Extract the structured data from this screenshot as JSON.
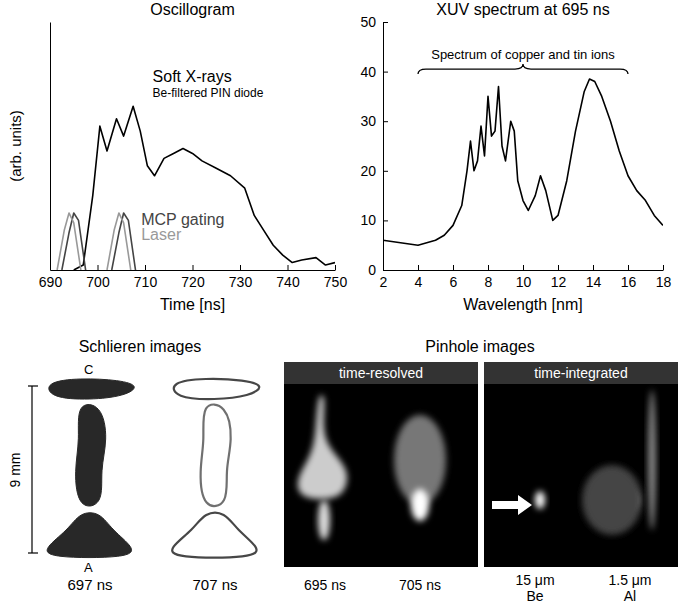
{
  "chart_data": [
    {
      "type": "line",
      "title": "Oscillogram",
      "xlabel": "Time [ns]",
      "ylabel": "(arb. units)",
      "xlim": [
        690,
        750
      ],
      "xticks": [
        690,
        700,
        710,
        720,
        730,
        740,
        750
      ],
      "ylim": [
        0,
        1
      ],
      "tick_labels": "x",
      "annotations": [
        "Be-filtered PIN diode"
      ],
      "series": [
        {
          "name": "Soft X-rays",
          "color": "#000000",
          "x": [
            695,
            697,
            699,
            700.5,
            702,
            704,
            705.5,
            707.5,
            709,
            710.5,
            712,
            714,
            716,
            718,
            720,
            722,
            725,
            728,
            731,
            733,
            735,
            737,
            739,
            741,
            743,
            746,
            748,
            750
          ],
          "values": [
            0,
            0.02,
            0.3,
            0.58,
            0.48,
            0.61,
            0.54,
            0.66,
            0.56,
            0.42,
            0.38,
            0.45,
            0.47,
            0.49,
            0.47,
            0.44,
            0.41,
            0.38,
            0.33,
            0.22,
            0.16,
            0.1,
            0.06,
            0.03,
            0.04,
            0.05,
            0.02,
            0.03
          ]
        },
        {
          "name": "MCP gating",
          "color": "#444444",
          "x": [
            692.5,
            694,
            695,
            696,
            697.5,
            700,
            703,
            704.5,
            705.5,
            706.5,
            708
          ],
          "values": [
            0,
            0.15,
            0.23,
            0.2,
            0,
            null,
            0,
            0.15,
            0.23,
            0.2,
            0
          ]
        },
        {
          "name": "Laser",
          "color": "#999999",
          "x": [
            691.5,
            693,
            694,
            695,
            696.5,
            699,
            702,
            703.5,
            704.5,
            705.5,
            707
          ],
          "values": [
            0,
            0.16,
            0.23,
            0.19,
            0,
            null,
            0,
            0.16,
            0.23,
            0.19,
            0
          ]
        }
      ]
    },
    {
      "type": "line",
      "title": "XUV spectrum at 695 ns",
      "xlabel": "Wavelength [nm]",
      "xlim": [
        2,
        18
      ],
      "xticks": [
        2,
        4,
        6,
        8,
        10,
        12,
        14,
        16,
        18
      ],
      "ylim": [
        0,
        50
      ],
      "yticks": [
        0,
        10,
        20,
        30,
        40,
        50
      ],
      "color": "#000000",
      "annotations": [
        {
          "text": "Spectrum of copper and tin ions",
          "x_range": [
            4,
            16
          ],
          "y": 40.5
        }
      ],
      "x": [
        2,
        3,
        4,
        5,
        5.5,
        6,
        6.5,
        6.8,
        7,
        7.2,
        7.4,
        7.6,
        7.8,
        8,
        8.2,
        8.4,
        8.6,
        8.8,
        9,
        9.3,
        9.5,
        9.7,
        10,
        10.3,
        10.7,
        11,
        11.3,
        11.7,
        12,
        12.5,
        13,
        13.5,
        13.8,
        14.1,
        14.5,
        15,
        15.5,
        16,
        16.5,
        17,
        17.5,
        18
      ],
      "values": [
        6,
        5.5,
        5,
        6,
        7,
        9,
        13,
        20,
        26,
        20,
        22,
        29,
        23,
        35,
        27,
        28,
        37,
        25,
        22,
        30,
        28,
        18,
        14,
        12,
        15,
        19,
        16,
        10,
        11,
        18,
        28,
        36,
        38.5,
        38,
        35,
        30,
        24,
        19,
        16,
        14,
        11,
        9
      ]
    }
  ],
  "images": {
    "schlieren": {
      "title": "Schlieren images",
      "scale_label": "9 mm",
      "electrode_labels": [
        "C",
        "A"
      ],
      "frames": [
        "697 ns",
        "707 ns"
      ]
    },
    "pinhole": {
      "title": "Pinhole images",
      "groups": [
        {
          "label": "time-resolved",
          "frames": [
            "695 ns",
            "705 ns"
          ]
        },
        {
          "label": "time-integrated",
          "frames": [
            "15 μm Be",
            "1.5 μm Al"
          ]
        }
      ]
    }
  }
}
